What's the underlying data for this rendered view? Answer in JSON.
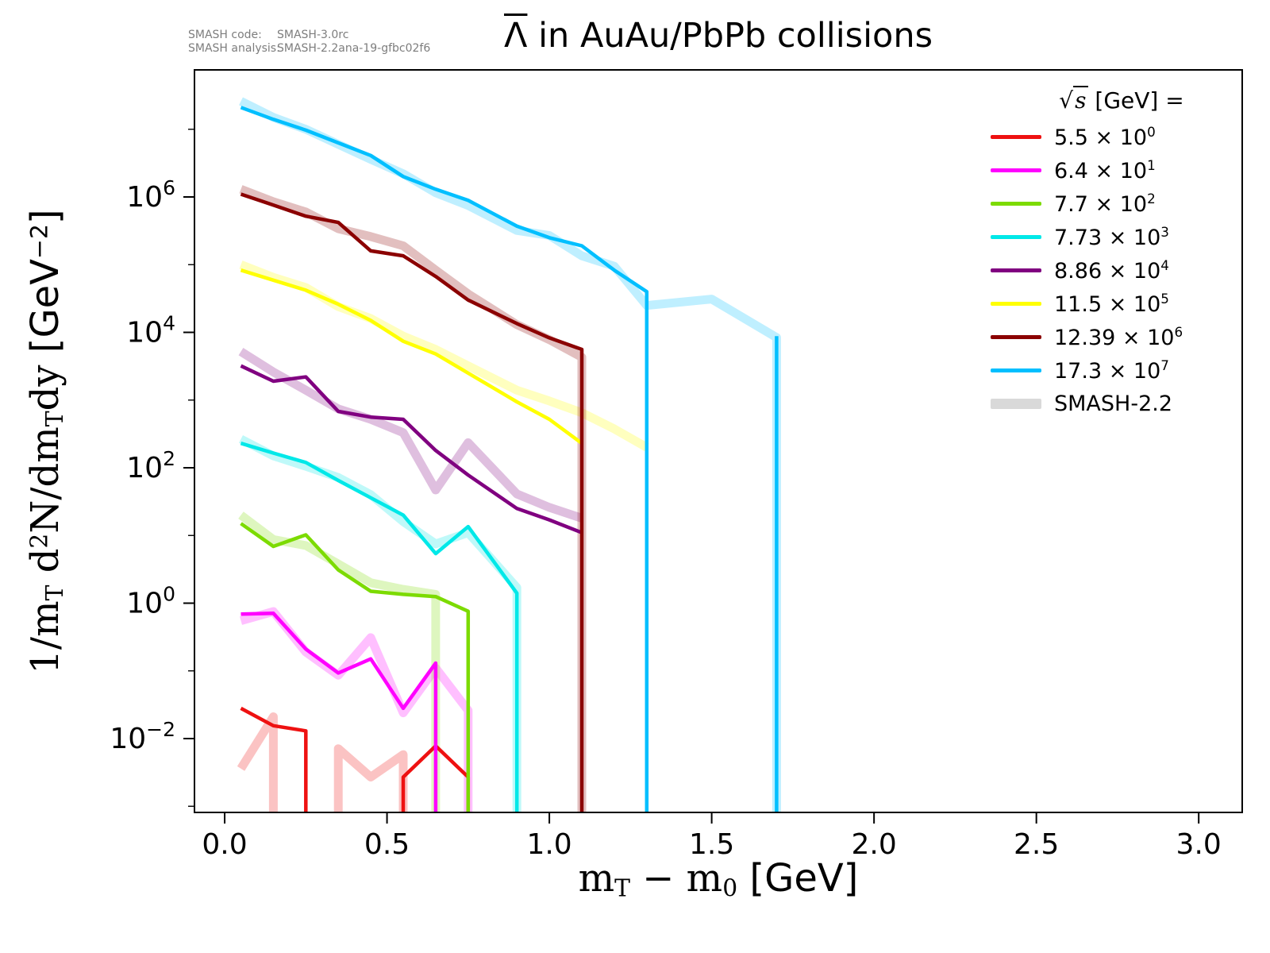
{
  "corner_note": {
    "code_label": "SMASH code:",
    "code_value": "SMASH-3.0rc",
    "analysis_label": "SMASH analysis:",
    "analysis_value": "SMASH-2.2ana-19-gfbc02f6"
  },
  "title": {
    "particle": "Λ",
    "rest": " in AuAu/PbPb collisions"
  },
  "chart_data": {
    "type": "line",
    "title": "Λ̄ in AuAu/PbPb collisions",
    "xlabel": "m_T − m_0 [GeV]",
    "ylabel": "1/m_T d²N/dm_T dy [GeV⁻²]",
    "xlabel_parts": [
      {
        "t": "m"
      },
      {
        "sub": "T"
      },
      {
        "t": " − m"
      },
      {
        "sub": "0"
      },
      {
        "t": " [GeV]",
        "u": true
      }
    ],
    "ylabel_parts": [
      {
        "t": "1/m"
      },
      {
        "sub": "T"
      },
      {
        "t": " d"
      },
      {
        "sup": "2"
      },
      {
        "t": "N/dm"
      },
      {
        "sub": "T"
      },
      {
        "t": "dy "
      },
      {
        "t": "[GeV",
        "u": true
      },
      {
        "sup": "−2",
        "u": true
      },
      {
        "t": "]",
        "u": true
      }
    ],
    "xlim": [
      -0.093,
      3.134
    ],
    "ylog_lim": [
      -3.091,
      7.877
    ],
    "x_ticks": [
      0.0,
      0.5,
      1.0,
      1.5,
      2.0,
      2.5,
      3.0
    ],
    "y_ticks": [
      {
        "log": 6,
        "exp": "6"
      },
      {
        "log": 4,
        "exp": "4"
      },
      {
        "log": 2,
        "exp": "2"
      },
      {
        "log": 0,
        "exp": "0"
      },
      {
        "log": -2,
        "exp": "−2"
      }
    ],
    "y_minor_ticks_log": [
      7,
      5,
      3,
      1,
      -1,
      -3
    ],
    "grid": false,
    "legend_position": "upper right",
    "legend_title": {
      "sqrt": "√",
      "arg": "s",
      "rest": " [GeV] ="
    },
    "smash22_legend": {
      "id": "smash22",
      "label": "SMASH-2.2",
      "color": "#d9d9d9"
    },
    "band_opacity": 0.25,
    "series": [
      {
        "id": "e5p5",
        "legend_coef": "5.5",
        "legend_exp": "0",
        "color": "#ee1111",
        "smash30": [
          [
            [
              0.05,
              0.028
            ],
            [
              0.15,
              0.0155
            ],
            [
              0.25,
              0.013
            ],
            [
              0.25,
              0.0002
            ]
          ],
          [
            [
              0.55,
              0.0002
            ],
            [
              0.55,
              0.0027
            ],
            [
              0.65,
              0.0078
            ],
            [
              0.75,
              0.0027
            ],
            [
              0.75,
              0.0002
            ]
          ]
        ],
        "smash22": [
          [
            [
              0.05,
              0.0036
            ],
            [
              0.15,
              0.021
            ],
            [
              0.15,
              0.0002
            ]
          ],
          [
            [
              0.35,
              0.0002
            ],
            [
              0.35,
              0.0071
            ],
            [
              0.45,
              0.0027
            ],
            [
              0.55,
              0.0058
            ],
            [
              0.55,
              0.0002
            ]
          ]
        ]
      },
      {
        "id": "e64",
        "legend_coef": "6.4",
        "legend_exp": "1",
        "color": "#ff00ff",
        "smash30": [
          [
            [
              0.05,
              0.69
            ],
            [
              0.15,
              0.71
            ],
            [
              0.25,
              0.21
            ],
            [
              0.35,
              0.093
            ],
            [
              0.45,
              0.15
            ],
            [
              0.55,
              0.028
            ],
            [
              0.65,
              0.13
            ],
            [
              0.65,
              0.0002
            ]
          ]
        ],
        "smash22": [
          [
            [
              0.05,
              0.55
            ],
            [
              0.15,
              0.75
            ],
            [
              0.25,
              0.19
            ],
            [
              0.35,
              0.086
            ],
            [
              0.45,
              0.31
            ],
            [
              0.55,
              0.024
            ],
            [
              0.65,
              0.11
            ],
            [
              0.75,
              0.026
            ],
            [
              0.75,
              0.0002
            ]
          ]
        ]
      },
      {
        "id": "e770",
        "legend_coef": "7.7",
        "legend_exp": "2",
        "color": "#7cdb00",
        "smash30": [
          [
            [
              0.05,
              15
            ],
            [
              0.15,
              6.9
            ],
            [
              0.25,
              10.2
            ],
            [
              0.35,
              3.1
            ],
            [
              0.45,
              1.5
            ],
            [
              0.55,
              1.35
            ],
            [
              0.65,
              1.25
            ],
            [
              0.75,
              0.76
            ],
            [
              0.75,
              0.0002
            ]
          ]
        ],
        "smash22": [
          [
            [
              0.05,
              20
            ],
            [
              0.15,
              8.7
            ],
            [
              0.25,
              7.1
            ],
            [
              0.35,
              3.8
            ],
            [
              0.45,
              2.0
            ],
            [
              0.55,
              1.6
            ],
            [
              0.65,
              1.35
            ],
            [
              0.65,
              0.0002
            ]
          ]
        ]
      },
      {
        "id": "e7730",
        "legend_coef": "7.73",
        "legend_exp": "3",
        "color": "#00e8e8",
        "smash30": [
          [
            [
              0.05,
              230
            ],
            [
              0.15,
              165
            ],
            [
              0.25,
              120
            ],
            [
              0.35,
              65
            ],
            [
              0.45,
              36
            ],
            [
              0.55,
              20
            ],
            [
              0.65,
              5.4
            ],
            [
              0.75,
              13.5
            ],
            [
              0.9,
              1.4
            ],
            [
              0.9,
              0.0002
            ]
          ]
        ],
        "smash22": [
          [
            [
              0.05,
              265
            ],
            [
              0.15,
              150
            ],
            [
              0.25,
              105
            ],
            [
              0.35,
              72
            ],
            [
              0.45,
              40
            ],
            [
              0.55,
              16
            ],
            [
              0.65,
              7.5
            ],
            [
              0.75,
              11
            ],
            [
              0.9,
              1.7
            ],
            [
              0.9,
              0.0002
            ]
          ]
        ]
      },
      {
        "id": "e88600",
        "legend_coef": "8.86",
        "legend_exp": "4",
        "color": "#800080",
        "smash30": [
          [
            [
              0.05,
              3200
            ],
            [
              0.15,
              1900
            ],
            [
              0.25,
              2200
            ],
            [
              0.35,
              680
            ],
            [
              0.45,
              560
            ],
            [
              0.55,
              520
            ],
            [
              0.65,
              180
            ],
            [
              0.75,
              78
            ],
            [
              0.9,
              25
            ],
            [
              1.0,
              17
            ],
            [
              1.1,
              11
            ]
          ]
        ],
        "smash22": [
          [
            [
              0.05,
              5200
            ],
            [
              0.15,
              2600
            ],
            [
              0.25,
              1400
            ],
            [
              0.35,
              740
            ],
            [
              0.45,
              520
            ],
            [
              0.55,
              330
            ],
            [
              0.65,
              47
            ],
            [
              0.75,
              235
            ],
            [
              0.9,
              41
            ],
            [
              1.0,
              26
            ],
            [
              1.1,
              18
            ]
          ]
        ]
      },
      {
        "id": "e1p15M",
        "legend_coef": "11.5",
        "legend_exp": "5",
        "color": "#ffff00",
        "smash30": [
          [
            [
              0.05,
              83000
            ],
            [
              0.15,
              59000
            ],
            [
              0.25,
              42000
            ],
            [
              0.35,
              26000
            ],
            [
              0.45,
              15000
            ],
            [
              0.55,
              7400
            ],
            [
              0.65,
              4800
            ],
            [
              0.75,
              2500
            ],
            [
              0.9,
              940
            ],
            [
              1.0,
              520
            ],
            [
              1.1,
              230
            ]
          ]
        ],
        "smash22": [
          [
            [
              0.05,
              100000
            ],
            [
              0.15,
              65000
            ],
            [
              0.25,
              46000
            ],
            [
              0.35,
              24000
            ],
            [
              0.45,
              16000
            ],
            [
              0.55,
              8800
            ],
            [
              0.65,
              5600
            ],
            [
              0.75,
              3200
            ],
            [
              0.9,
              1400
            ],
            [
              1.0,
              970
            ],
            [
              1.1,
              650
            ],
            [
              1.2,
              375
            ],
            [
              1.3,
              200
            ]
          ]
        ]
      },
      {
        "id": "e12p39M",
        "legend_coef": "12.39",
        "legend_exp": "6",
        "color": "#8b0000",
        "smash30": [
          [
            [
              0.05,
              1100000
            ],
            [
              0.15,
              760000
            ],
            [
              0.25,
              520000
            ],
            [
              0.35,
              420000
            ],
            [
              0.45,
              160000
            ],
            [
              0.55,
              135000
            ],
            [
              0.65,
              67000
            ],
            [
              0.75,
              30000
            ],
            [
              0.9,
              13500
            ],
            [
              1.0,
              8300
            ],
            [
              1.1,
              5600
            ],
            [
              1.1,
              0.0002
            ]
          ]
        ],
        "smash22": [
          [
            [
              0.05,
              1300000
            ],
            [
              0.15,
              850000
            ],
            [
              0.25,
              600000
            ],
            [
              0.35,
              340000
            ],
            [
              0.45,
              260000
            ],
            [
              0.55,
              190000
            ],
            [
              0.65,
              83000
            ],
            [
              0.75,
              37000
            ],
            [
              0.9,
              13000
            ],
            [
              1.0,
              7800
            ],
            [
              1.1,
              4300
            ],
            [
              1.1,
              0.0002
            ]
          ]
        ]
      },
      {
        "id": "e173M",
        "legend_coef": "17.3",
        "legend_exp": "7",
        "color": "#00bfff",
        "smash30": [
          [
            [
              0.05,
              21000000
            ],
            [
              0.15,
              14000000
            ],
            [
              0.25,
              9700000
            ],
            [
              0.35,
              6300000
            ],
            [
              0.45,
              4100000
            ],
            [
              0.55,
              2000000
            ],
            [
              0.65,
              1300000
            ],
            [
              0.75,
              890000
            ],
            [
              0.9,
              370000
            ],
            [
              1.0,
              250000
            ],
            [
              1.1,
              190000
            ],
            [
              1.2,
              83000
            ],
            [
              1.3,
              40000
            ],
            [
              1.3,
              0.0002
            ]
          ],
          [
            [
              1.7,
              8800
            ],
            [
              1.7,
              0.0002
            ]
          ]
        ],
        "smash22": [
          [
            [
              0.05,
              26000000
            ],
            [
              0.15,
              15000000
            ],
            [
              0.25,
              10000000
            ],
            [
              0.35,
              6000000
            ],
            [
              0.45,
              3600000
            ],
            [
              0.55,
              2200000
            ],
            [
              0.65,
              1150000
            ],
            [
              0.75,
              750000
            ],
            [
              0.9,
              320000
            ],
            [
              1.0,
              270000
            ],
            [
              1.1,
              135000
            ],
            [
              1.2,
              95000
            ],
            [
              1.3,
              25000
            ],
            [
              1.5,
              31000
            ],
            [
              1.7,
              8400
            ],
            [
              1.7,
              0.0002
            ]
          ]
        ]
      }
    ]
  }
}
